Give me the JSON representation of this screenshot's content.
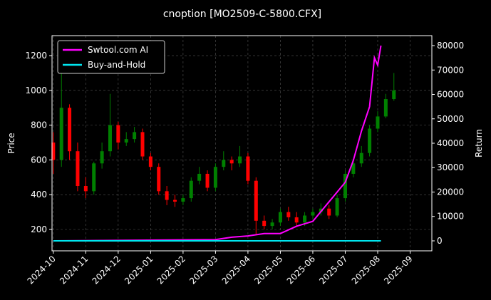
{
  "chart_data": {
    "type": "candlestick",
    "title": "cnoption [MO2509-C-5800.CFX]",
    "ylabel": "Price",
    "y2label": "Return",
    "xlim": [
      -0.04,
      11.67
    ],
    "xticks": [
      {
        "value": 0,
        "label": "2024-10"
      },
      {
        "value": 1,
        "label": "2024-11"
      },
      {
        "value": 2,
        "label": "2024-12"
      },
      {
        "value": 3,
        "label": "2025-01"
      },
      {
        "value": 4,
        "label": "2025-02"
      },
      {
        "value": 5,
        "label": "2025-03"
      },
      {
        "value": 6,
        "label": "2025-04"
      },
      {
        "value": 7,
        "label": "2025-05"
      },
      {
        "value": 8,
        "label": "2025-06"
      },
      {
        "value": 9,
        "label": "2025-07"
      },
      {
        "value": 10,
        "label": "2025-08"
      },
      {
        "value": 11,
        "label": "2025-09"
      }
    ],
    "ylim": [
      77,
      1315
    ],
    "yticks": [
      200,
      400,
      600,
      800,
      1000,
      1200
    ],
    "y2lim": [
      -4090,
      84090
    ],
    "y2ticks": [
      0,
      10000,
      20000,
      30000,
      40000,
      50000,
      60000,
      70000,
      80000
    ],
    "grid": true,
    "legend": "upper left",
    "candles": {
      "up_color": "#008000",
      "down_color": "#ff0000",
      "x": [
        0,
        0.25,
        0.5,
        0.75,
        1,
        1.25,
        1.5,
        1.75,
        2,
        2.25,
        2.5,
        2.75,
        3,
        3.25,
        3.5,
        3.75,
        4,
        4.25,
        4.5,
        4.75,
        5,
        5.25,
        5.5,
        5.75,
        6,
        6.25,
        6.5,
        6.75,
        7,
        7.25,
        7.5,
        7.75,
        8,
        8.25,
        8.5,
        8.75,
        9,
        9.25,
        9.5,
        9.75,
        10,
        10.25,
        10.5
      ],
      "open": [
        700,
        600,
        900,
        650,
        450,
        420,
        580,
        650,
        800,
        700,
        720,
        760,
        620,
        560,
        420,
        370,
        360,
        380,
        480,
        520,
        440,
        560,
        600,
        580,
        620,
        480,
        250,
        220,
        240,
        300,
        270,
        240,
        280,
        300,
        320,
        280,
        380,
        520,
        580,
        640,
        780,
        850,
        950
      ],
      "high": [
        760,
        1150,
        920,
        700,
        500,
        590,
        700,
        980,
        820,
        760,
        790,
        780,
        640,
        580,
        450,
        400,
        400,
        500,
        560,
        540,
        580,
        650,
        620,
        680,
        640,
        500,
        280,
        260,
        320,
        330,
        300,
        300,
        320,
        350,
        340,
        400,
        540,
        600,
        680,
        800,
        880,
        980,
        1100
      ],
      "low": [
        520,
        560,
        600,
        420,
        380,
        400,
        550,
        620,
        660,
        680,
        700,
        600,
        540,
        400,
        340,
        330,
        340,
        360,
        460,
        420,
        420,
        540,
        540,
        560,
        460,
        170,
        200,
        200,
        220,
        250,
        220,
        220,
        260,
        280,
        260,
        270,
        360,
        500,
        560,
        620,
        760,
        840,
        940
      ],
      "close": [
        600,
        900,
        650,
        450,
        420,
        580,
        650,
        800,
        700,
        720,
        760,
        620,
        560,
        420,
        370,
        360,
        380,
        480,
        520,
        440,
        560,
        600,
        580,
        620,
        480,
        250,
        220,
        240,
        300,
        270,
        240,
        280,
        300,
        320,
        280,
        380,
        520,
        580,
        640,
        780,
        850,
        950,
        1000
      ]
    },
    "series": [
      {
        "name": "Swtool.com AI",
        "color": "#ff00ff",
        "axis": "y2",
        "x": [
          0,
          5,
          5.5,
          6,
          6.5,
          7,
          7.5,
          8,
          8.5,
          8.75,
          9,
          9.25,
          9.5,
          9.75,
          9.9,
          10,
          10.1
        ],
        "values": [
          0,
          500,
          1500,
          2000,
          3000,
          3000,
          6000,
          8000,
          16000,
          20000,
          24000,
          33000,
          45000,
          55000,
          75000,
          72000,
          80000
        ]
      },
      {
        "name": "Buy-and-Hold",
        "color": "#00e5ee",
        "axis": "y2",
        "x": [
          0,
          10.1
        ],
        "values": [
          0,
          0
        ]
      }
    ]
  }
}
